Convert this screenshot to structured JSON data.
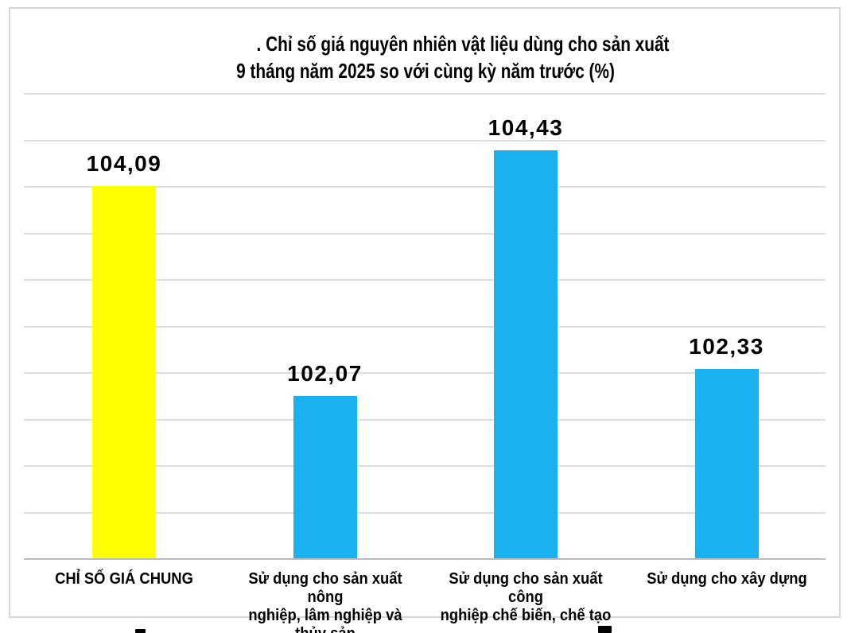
{
  "title": {
    "line1": ". Chỉ số giá nguyên nhiên vật liệu dùng cho sản xuất",
    "line2": "9 tháng năm 2025 so với cùng kỳ năm trước (%)"
  },
  "chart_data": {
    "type": "bar",
    "title": "Chỉ số giá nguyên nhiên vật liệu dùng cho sản xuất 9 tháng năm 2025 so với cùng kỳ năm trước (%)",
    "categories": [
      "CHỈ SỐ GIÁ CHUNG",
      "Sử dụng cho sản xuất nông nghiệp, lâm nghiệp và thủy sản",
      "Sử dụng cho sản xuất công nghiệp chế biến, chế tạo",
      "Sử dụng cho xây dựng"
    ],
    "category_labels_display": [
      "CHỈ SỐ GIÁ CHUNG",
      "Sử dụng cho sản xuất nông\nnghiệp, lâm nghiệp và thủy sản",
      "Sử dụng cho sản xuất công\nnghiệp chế biến, chế tạo",
      "Sử dụng cho xây dựng"
    ],
    "values": [
      104.09,
      102.07,
      104.43,
      102.33
    ],
    "value_labels": [
      "104,09",
      "102,07",
      "104,43",
      "102,33"
    ],
    "bar_colors": [
      "#ffff00",
      "#1ab1f0",
      "#1ab1f0",
      "#1ab1f0"
    ],
    "xlabel": "",
    "ylabel": "",
    "ylim": [
      100.5,
      105.0
    ],
    "grid": true,
    "gridline_count": 10,
    "legend": false,
    "accent_colors": {
      "highlight_bar": "#ffff00",
      "default_bar": "#1ab1f0",
      "gridline": "#dedede",
      "axis": "#bcbcbc",
      "border": "#d7d7d7"
    }
  }
}
